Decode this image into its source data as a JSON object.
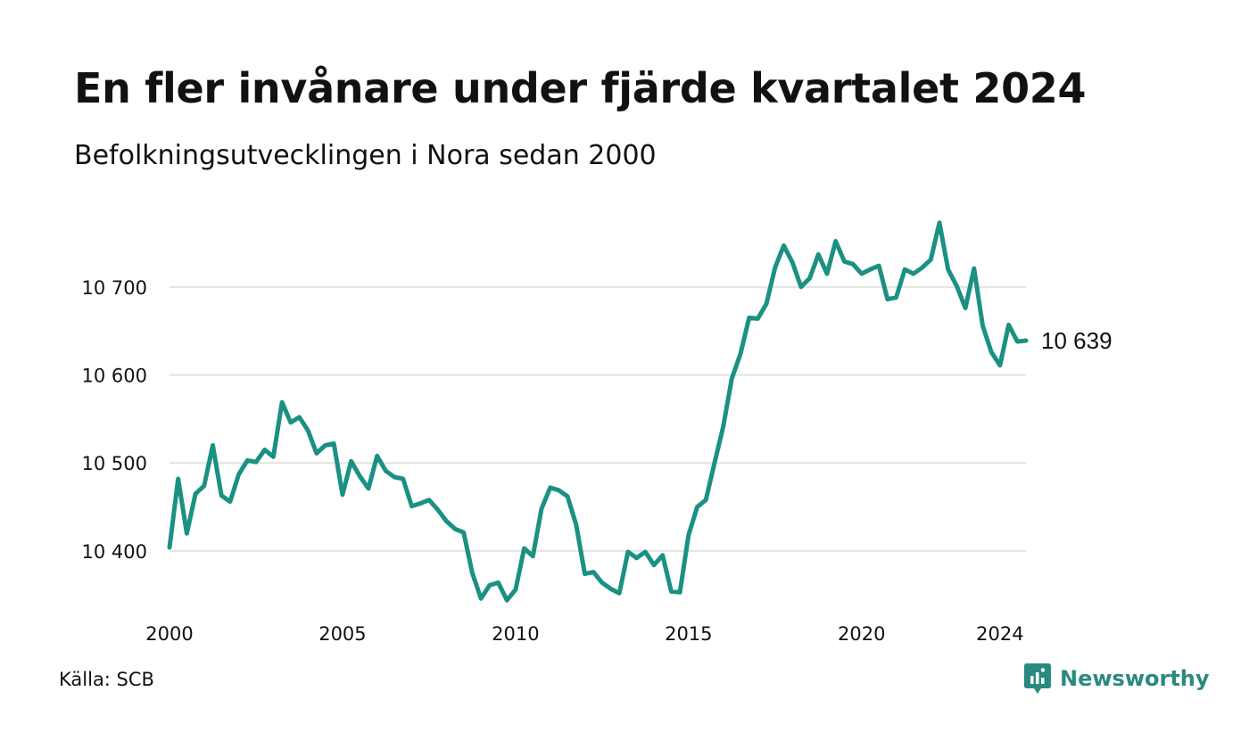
{
  "title": "En fler invånare under fjärde kvartalet 2024",
  "subtitle": "Befolkningsutvecklingen i Nora sedan 2000",
  "source": "Källa: SCB",
  "brand": "Newsworthy",
  "colors": {
    "line": "#1a9182",
    "grid": "#e3e3e3",
    "text": "#111111",
    "brand": "#2a8a7f"
  },
  "chart_data": {
    "type": "line",
    "x_ticks": [
      "2000",
      "2005",
      "2010",
      "2015",
      "2020",
      "2024"
    ],
    "y_ticks": [
      "10 400",
      "10 500",
      "10 600",
      "10 700"
    ],
    "ylim": [
      10330,
      10790
    ],
    "xlim": [
      2000.0,
      2024.75
    ],
    "grid": "horizontal",
    "end_label": "10 639",
    "series": [
      {
        "x": [
          2000.0,
          2000.25,
          2000.5,
          2000.75,
          2001.0,
          2001.25,
          2001.5,
          2001.75,
          2002.0,
          2002.25,
          2002.5,
          2002.75,
          2003.0,
          2003.25,
          2003.5,
          2003.75,
          2004.0,
          2004.25,
          2004.5,
          2004.75,
          2005.0,
          2005.25,
          2005.5,
          2005.75,
          2006.0,
          2006.25,
          2006.5,
          2006.75,
          2007.0,
          2007.25,
          2007.5,
          2007.75,
          2008.0,
          2008.25,
          2008.5,
          2008.75,
          2009.0,
          2009.25,
          2009.5,
          2009.75,
          2010.0,
          2010.25,
          2010.5,
          2010.75,
          2011.0,
          2011.25,
          2011.5,
          2011.75,
          2012.0,
          2012.25,
          2012.5,
          2012.75,
          2013.0,
          2013.25,
          2013.5,
          2013.75,
          2014.0,
          2014.25,
          2014.5,
          2014.75,
          2015.0,
          2015.25,
          2015.5,
          2015.75,
          2016.0,
          2016.25,
          2016.5,
          2016.75,
          2017.0,
          2017.25,
          2017.5,
          2017.75,
          2018.0,
          2018.25,
          2018.5,
          2018.75,
          2019.0,
          2019.25,
          2019.5,
          2019.75,
          2020.0,
          2020.25,
          2020.5,
          2020.75,
          2021.0,
          2021.25,
          2021.5,
          2021.75,
          2022.0,
          2022.25,
          2022.5,
          2022.75,
          2023.0,
          2023.25,
          2023.5,
          2023.75,
          2024.0,
          2024.25,
          2024.5,
          2024.75
        ],
        "values": [
          10404,
          10482,
          10420,
          10465,
          10474,
          10520,
          10463,
          10456,
          10487,
          10503,
          10501,
          10515,
          10507,
          10569,
          10546,
          10552,
          10537,
          10511,
          10520,
          10522,
          10464,
          10502,
          10485,
          10471,
          10508,
          10491,
          10484,
          10482,
          10451,
          10454,
          10458,
          10447,
          10434,
          10425,
          10421,
          10375,
          10346,
          10361,
          10364,
          10344,
          10356,
          10403,
          10394,
          10448,
          10472,
          10469,
          10462,
          10430,
          10374,
          10376,
          10364,
          10357,
          10352,
          10399,
          10392,
          10399,
          10384,
          10395,
          10354,
          10353,
          10418,
          10450,
          10458,
          10500,
          10541,
          10596,
          10624,
          10665,
          10664,
          10681,
          10722,
          10747,
          10728,
          10700,
          10710,
          10737,
          10715,
          10752,
          10729,
          10726,
          10715,
          10720,
          10724,
          10686,
          10688,
          10720,
          10715,
          10722,
          10731,
          10773,
          10720,
          10701,
          10676,
          10721,
          10656,
          10626,
          10611,
          10657,
          10638,
          10639
        ]
      }
    ]
  }
}
